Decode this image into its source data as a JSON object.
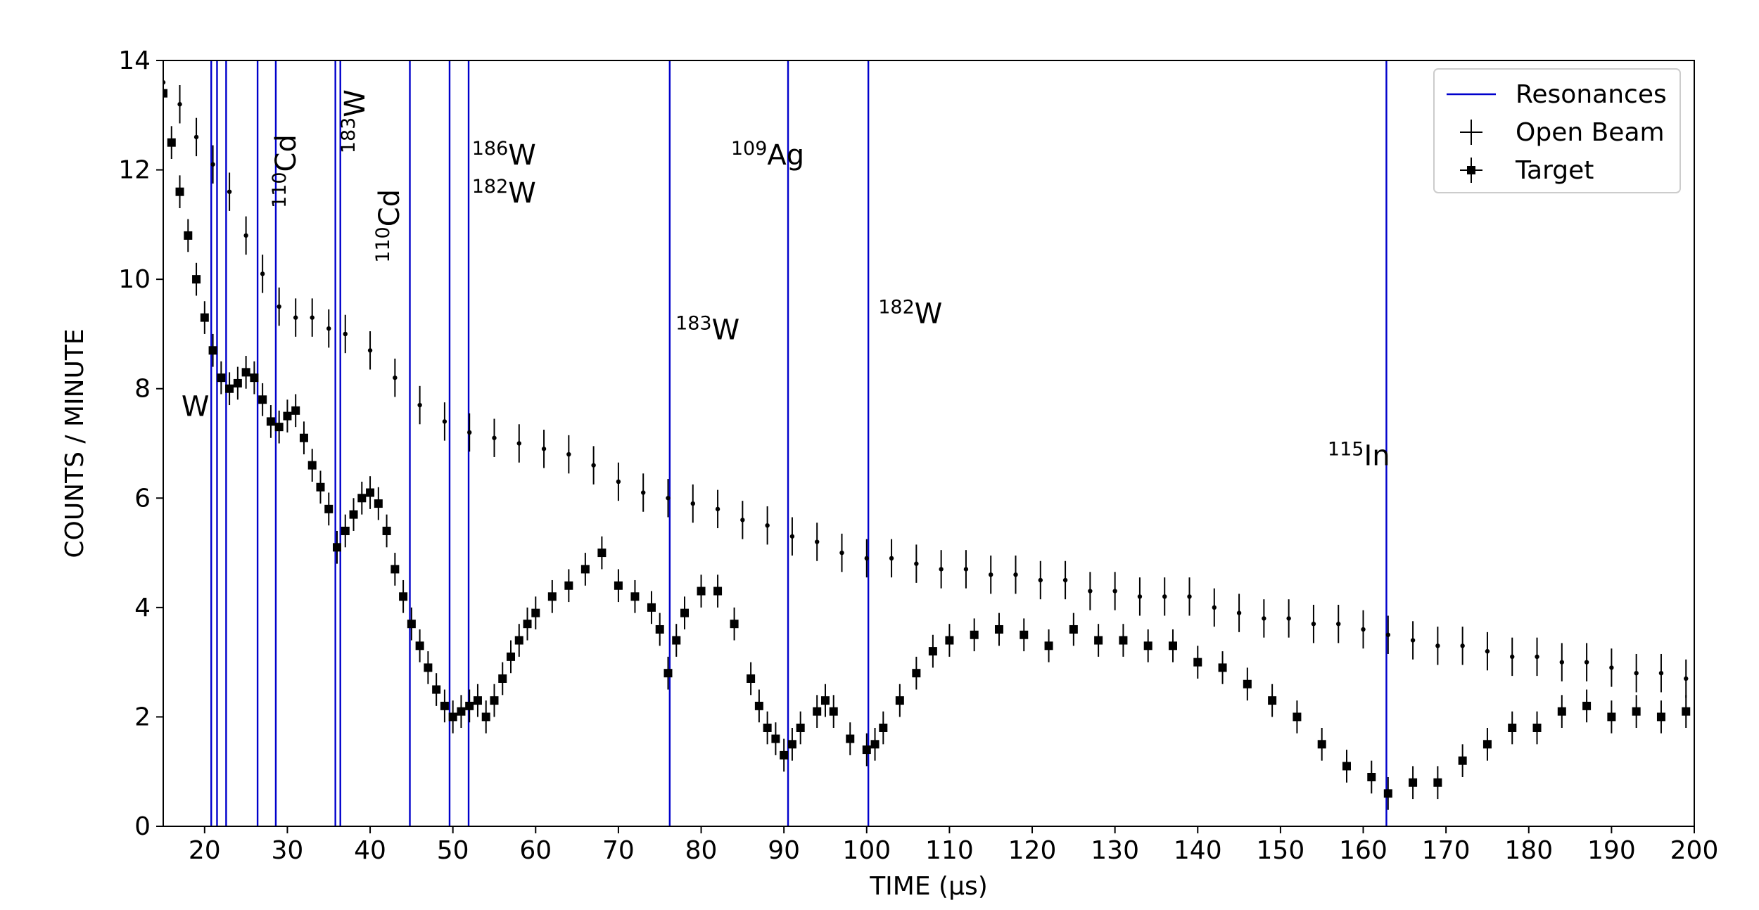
{
  "chart_data": {
    "type": "scatter",
    "xlabel": "TIME (μs)",
    "ylabel": "COUNTS / MINUTE",
    "xlim": [
      15,
      200
    ],
    "ylim": [
      0,
      14
    ],
    "xticks": [
      20,
      30,
      40,
      50,
      60,
      70,
      80,
      90,
      100,
      110,
      120,
      130,
      140,
      150,
      160,
      170,
      180,
      190,
      200
    ],
    "yticks": [
      0,
      2,
      4,
      6,
      8,
      10,
      12,
      14
    ],
    "grid": false,
    "legend": {
      "position": "top-right",
      "entries": [
        {
          "label": "Resonances",
          "marker": "line",
          "color": "#0000cc"
        },
        {
          "label": "Open Beam",
          "marker": "errorbar",
          "color": "#000000"
        },
        {
          "label": "Target",
          "marker": "square-errorbar",
          "color": "#000000"
        }
      ]
    },
    "resonances": [
      20.8,
      21.5,
      22.6,
      26.4,
      28.6,
      35.8,
      36.4,
      44.8,
      49.6,
      51.9,
      76.2,
      90.5,
      100.2,
      162.8
    ],
    "annotations": [
      {
        "sup": "",
        "base": "W",
        "x": 17.2,
        "y": 7.5,
        "rotated": false
      },
      {
        "sup": "110",
        "base": "Cd",
        "x": 31.0,
        "y": 11.3,
        "rotated": true
      },
      {
        "sup": "183",
        "base": "W",
        "x": 39.3,
        "y": 12.3,
        "rotated": true
      },
      {
        "sup": "110",
        "base": "Cd",
        "x": 43.5,
        "y": 10.3,
        "rotated": true
      },
      {
        "sup": "186",
        "base": "W",
        "x": 52.3,
        "y": 12.1,
        "rotated": false
      },
      {
        "sup": "182",
        "base": "W",
        "x": 52.3,
        "y": 11.4,
        "rotated": false
      },
      {
        "sup": "183",
        "base": "W",
        "x": 76.9,
        "y": 8.9,
        "rotated": false
      },
      {
        "sup": "109",
        "base": "Ag",
        "x": 83.6,
        "y": 12.1,
        "rotated": false
      },
      {
        "sup": "182",
        "base": "W",
        "x": 101.4,
        "y": 9.2,
        "rotated": false
      },
      {
        "sup": "115",
        "base": "In",
        "x": 155.7,
        "y": 6.6,
        "rotated": false
      }
    ],
    "series": [
      {
        "name": "Open Beam",
        "marker": "point",
        "yerr": 0.35,
        "x": [
          15,
          17,
          19,
          21,
          23,
          25,
          27,
          29,
          31,
          33,
          35,
          37,
          40,
          43,
          46,
          49,
          52,
          55,
          58,
          61,
          64,
          67,
          70,
          73,
          76,
          79,
          82,
          85,
          88,
          91,
          94,
          97,
          100,
          103,
          106,
          109,
          112,
          115,
          118,
          121,
          124,
          127,
          130,
          133,
          136,
          139,
          142,
          145,
          148,
          151,
          154,
          157,
          160,
          163,
          166,
          169,
          172,
          175,
          178,
          181,
          184,
          187,
          190,
          193,
          196,
          199
        ],
        "y": [
          13.6,
          13.2,
          12.6,
          12.1,
          11.6,
          10.8,
          10.1,
          9.5,
          9.3,
          9.3,
          9.1,
          9.0,
          8.7,
          8.2,
          7.7,
          7.4,
          7.2,
          7.1,
          7.0,
          6.9,
          6.8,
          6.6,
          6.3,
          6.1,
          6.0,
          5.9,
          5.8,
          5.6,
          5.5,
          5.3,
          5.2,
          5.0,
          4.9,
          4.9,
          4.8,
          4.7,
          4.7,
          4.6,
          4.6,
          4.5,
          4.5,
          4.3,
          4.3,
          4.2,
          4.2,
          4.2,
          4.0,
          3.9,
          3.8,
          3.8,
          3.7,
          3.7,
          3.6,
          3.5,
          3.4,
          3.3,
          3.3,
          3.2,
          3.1,
          3.1,
          3.0,
          3.0,
          2.9,
          2.8,
          2.8,
          2.7
        ]
      },
      {
        "name": "Target",
        "marker": "square",
        "yerr": 0.3,
        "x": [
          15,
          16,
          17,
          18,
          19,
          20,
          21,
          22,
          23,
          24,
          25,
          26,
          27,
          28,
          29,
          30,
          31,
          32,
          33,
          34,
          35,
          36,
          37,
          38,
          39,
          40,
          41,
          42,
          43,
          44,
          45,
          46,
          47,
          48,
          49,
          50,
          51,
          52,
          53,
          54,
          55,
          56,
          57,
          58,
          59,
          60,
          62,
          64,
          66,
          68,
          70,
          72,
          74,
          75,
          76,
          77,
          78,
          80,
          82,
          84,
          86,
          87,
          88,
          89,
          90,
          91,
          92,
          94,
          95,
          96,
          98,
          100,
          101,
          102,
          104,
          106,
          108,
          110,
          113,
          116,
          119,
          122,
          125,
          128,
          131,
          134,
          137,
          140,
          143,
          146,
          149,
          152,
          155,
          158,
          161,
          163,
          166,
          169,
          172,
          175,
          178,
          181,
          184,
          187,
          190,
          193,
          196,
          199
        ],
        "y": [
          13.4,
          12.5,
          11.6,
          10.8,
          10.0,
          9.3,
          8.7,
          8.2,
          8.0,
          8.1,
          8.3,
          8.2,
          7.8,
          7.4,
          7.3,
          7.5,
          7.6,
          7.1,
          6.6,
          6.2,
          5.8,
          5.1,
          5.4,
          5.7,
          6.0,
          6.1,
          5.9,
          5.4,
          4.7,
          4.2,
          3.7,
          3.3,
          2.9,
          2.5,
          2.2,
          2.0,
          2.1,
          2.2,
          2.3,
          2.0,
          2.3,
          2.7,
          3.1,
          3.4,
          3.7,
          3.9,
          4.2,
          4.4,
          4.7,
          5.0,
          4.4,
          4.2,
          4.0,
          3.6,
          2.8,
          3.4,
          3.9,
          4.3,
          4.3,
          3.7,
          2.7,
          2.2,
          1.8,
          1.6,
          1.3,
          1.5,
          1.8,
          2.1,
          2.3,
          2.1,
          1.6,
          1.4,
          1.5,
          1.8,
          2.3,
          2.8,
          3.2,
          3.4,
          3.5,
          3.6,
          3.5,
          3.3,
          3.6,
          3.4,
          3.4,
          3.3,
          3.3,
          3.0,
          2.9,
          2.6,
          2.3,
          2.0,
          1.5,
          1.1,
          0.9,
          0.6,
          0.8,
          0.8,
          1.2,
          1.5,
          1.8,
          1.8,
          2.1,
          2.2,
          2.0,
          2.1,
          2.0,
          2.1
        ]
      }
    ]
  }
}
